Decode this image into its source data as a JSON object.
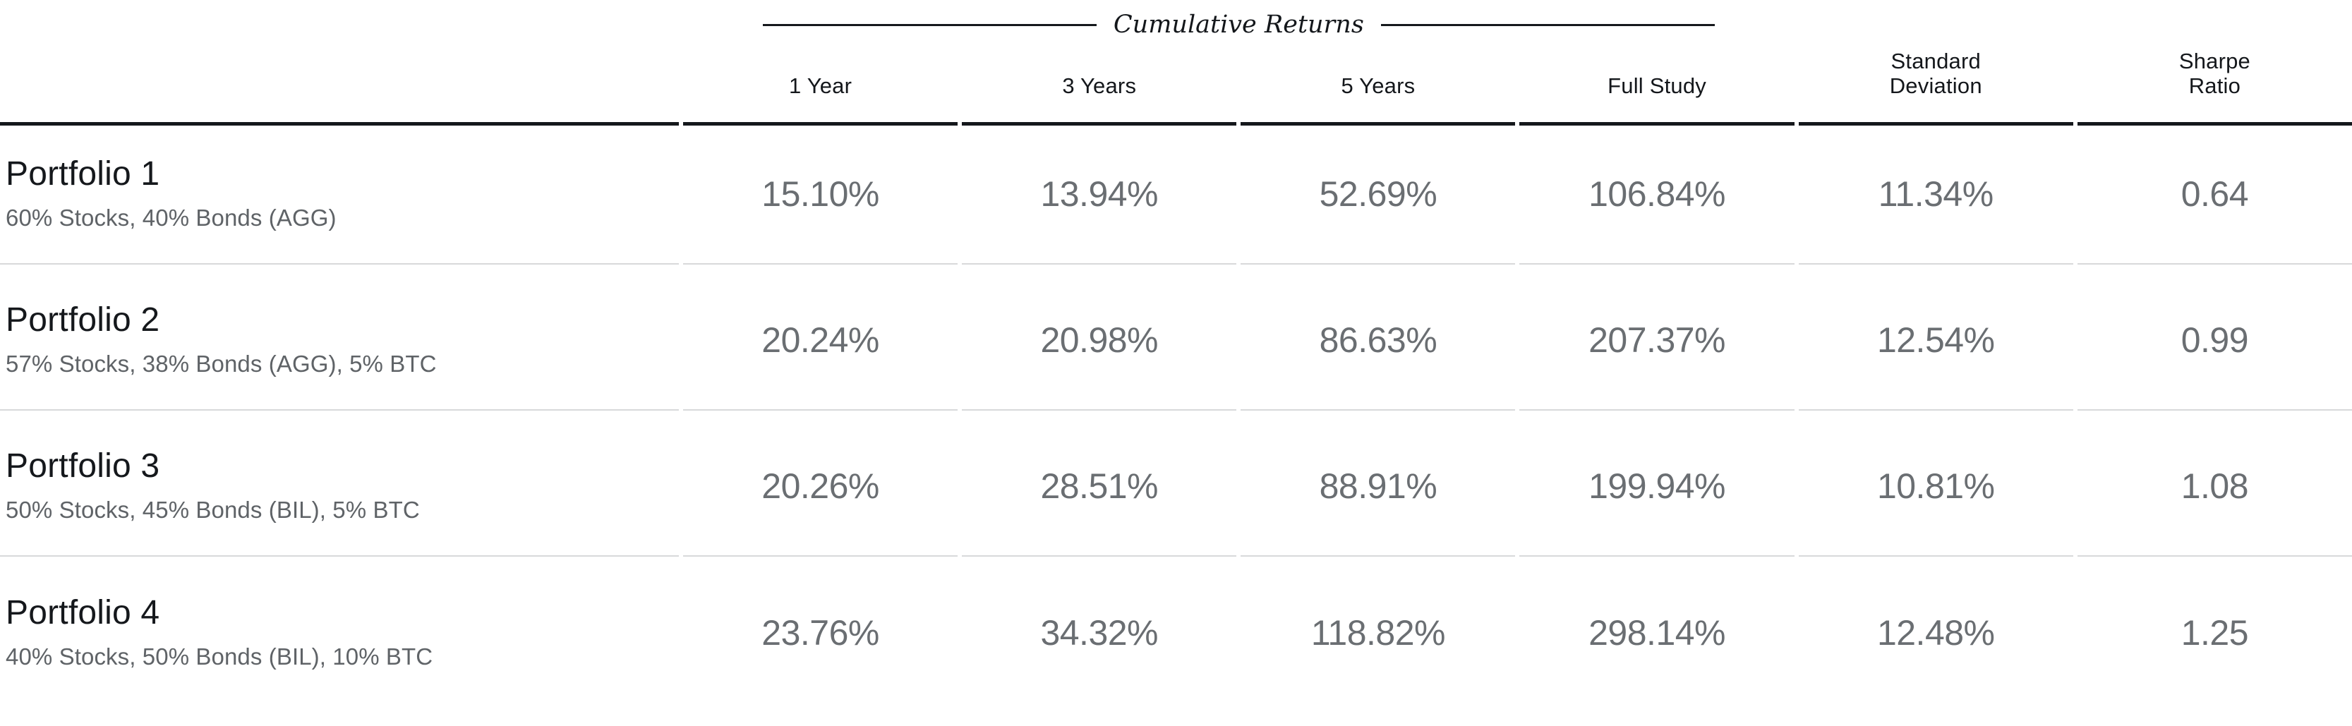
{
  "colors": {
    "background": "#ffffff",
    "text_primary": "#15181c",
    "text_secondary": "#5f6367",
    "text_values": "#6a6e72",
    "rule_dark": "#15181c",
    "rule_light": "#d8d9da"
  },
  "table": {
    "group_header": "Cumulative Returns",
    "columns": [
      "1 Year",
      "3 Years",
      "5 Years",
      "Full Study",
      "Standard\nDeviation",
      "Sharpe\nRatio"
    ],
    "rows": [
      {
        "title": "Portfolio 1",
        "description": "60% Stocks, 40% Bonds (AGG)",
        "values": [
          "15.10%",
          "13.94%",
          "52.69%",
          "106.84%",
          "11.34%",
          "0.64"
        ]
      },
      {
        "title": "Portfolio 2",
        "description": "57% Stocks, 38% Bonds (AGG), 5% BTC",
        "values": [
          "20.24%",
          "20.98%",
          "86.63%",
          "207.37%",
          "12.54%",
          "0.99"
        ]
      },
      {
        "title": "Portfolio 3",
        "description": "50% Stocks, 45% Bonds (BIL), 5% BTC",
        "values": [
          "20.26%",
          "28.51%",
          "88.91%",
          "199.94%",
          "10.81%",
          "1.08"
        ]
      },
      {
        "title": "Portfolio 4",
        "description": "40% Stocks, 50% Bonds (BIL), 10% BTC",
        "values": [
          "23.76%",
          "34.32%",
          "118.82%",
          "298.14%",
          "12.48%",
          "1.25"
        ]
      }
    ]
  },
  "chart_data": {
    "type": "table",
    "title": "Cumulative Returns",
    "columns": [
      "1 Year",
      "3 Years",
      "5 Years",
      "Full Study",
      "Standard Deviation",
      "Sharpe Ratio"
    ],
    "rows": [
      {
        "name": "Portfolio 1",
        "composition": "60% Stocks, 40% Bonds (AGG)",
        "cumulative_returns_pct": {
          "1_year": 15.1,
          "3_years": 13.94,
          "5_years": 52.69,
          "full_study": 106.84
        },
        "standard_deviation_pct": 11.34,
        "sharpe_ratio": 0.64
      },
      {
        "name": "Portfolio 2",
        "composition": "57% Stocks, 38% Bonds (AGG), 5% BTC",
        "cumulative_returns_pct": {
          "1_year": 20.24,
          "3_years": 20.98,
          "5_years": 86.63,
          "full_study": 207.37
        },
        "standard_deviation_pct": 12.54,
        "sharpe_ratio": 0.99
      },
      {
        "name": "Portfolio 3",
        "composition": "50% Stocks, 45% Bonds (BIL), 5% BTC",
        "cumulative_returns_pct": {
          "1_year": 20.26,
          "3_years": 28.51,
          "5_years": 88.91,
          "full_study": 199.94
        },
        "standard_deviation_pct": 10.81,
        "sharpe_ratio": 1.08
      },
      {
        "name": "Portfolio 4",
        "composition": "40% Stocks, 50% Bonds (BIL), 10% BTC",
        "cumulative_returns_pct": {
          "1_year": 23.76,
          "3_years": 34.32,
          "5_years": 118.82,
          "full_study": 298.14
        },
        "standard_deviation_pct": 12.48,
        "sharpe_ratio": 1.25
      }
    ]
  }
}
